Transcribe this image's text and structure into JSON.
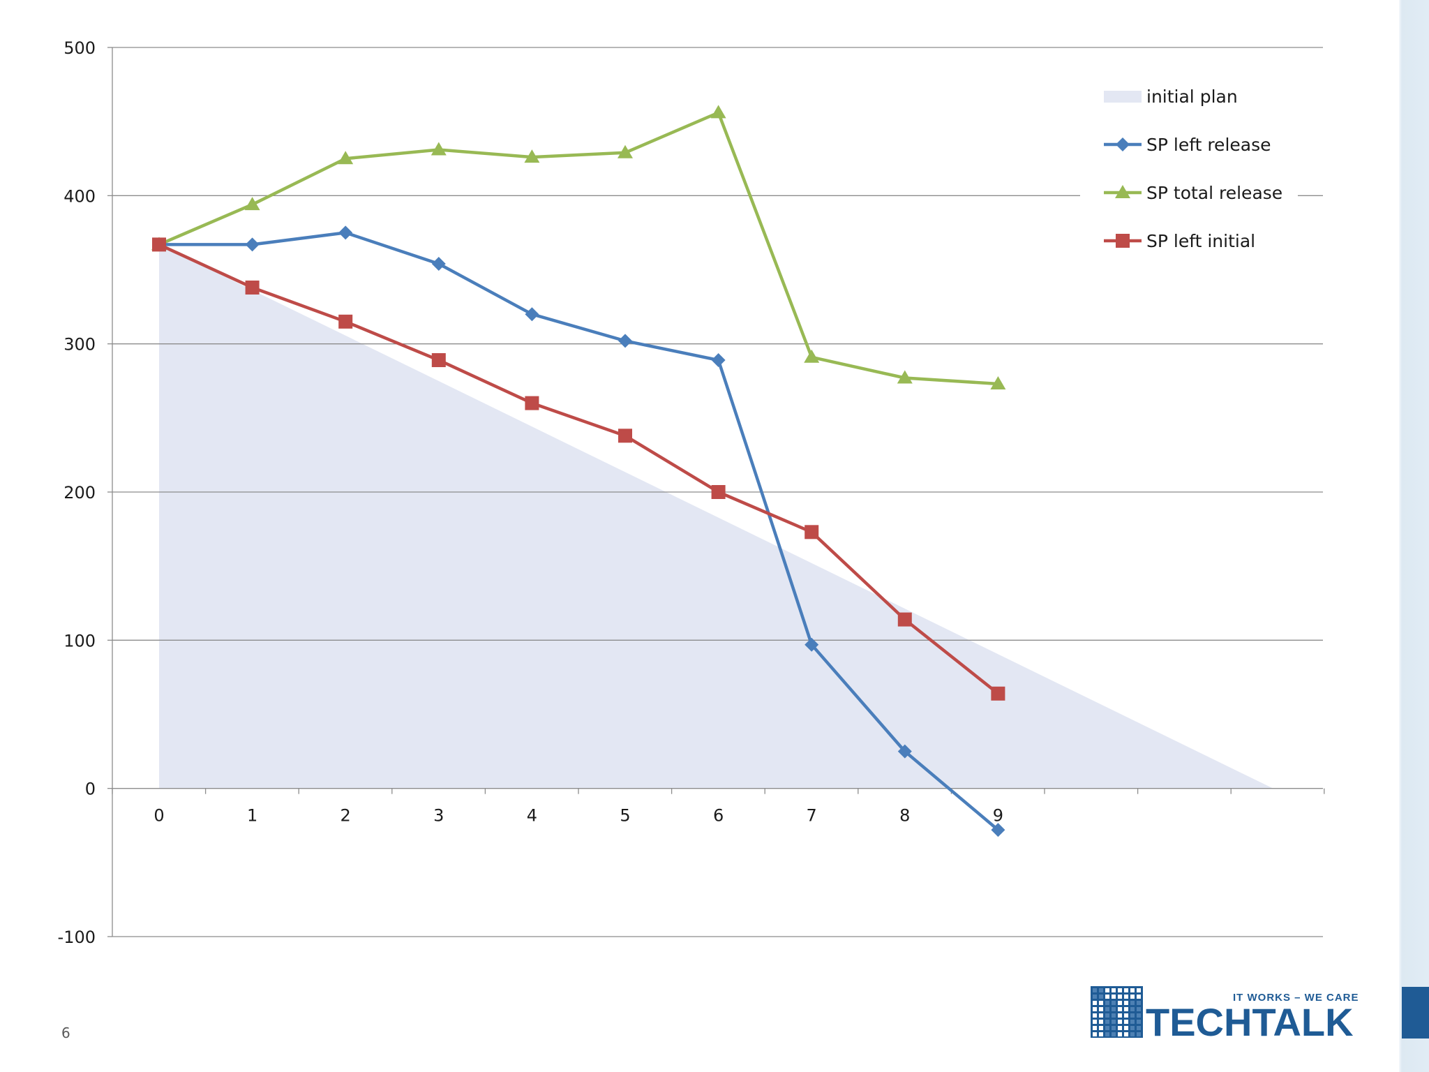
{
  "slide": {
    "page_number": "6"
  },
  "brand": {
    "tagline": "IT WORKS – WE CARE",
    "name": "TECHTALK",
    "color": "#1f5b95"
  },
  "chart_data": {
    "type": "line",
    "title": "",
    "xlabel": "",
    "ylabel": "",
    "categories": [
      "0",
      "1",
      "2",
      "3",
      "4",
      "5",
      "6",
      "7",
      "8",
      "9"
    ],
    "ylim": [
      -100,
      500
    ],
    "y_ticks": [
      500,
      400,
      300,
      200,
      100,
      0,
      -100
    ],
    "grid": true,
    "legend_position": "top-right",
    "series": [
      {
        "name": "initial plan",
        "kind": "area",
        "color": "#e3e7f3",
        "x": [
          0,
          11.95
        ],
        "values": [
          367,
          0
        ]
      },
      {
        "name": "SP left release",
        "kind": "line",
        "marker": "diamond",
        "color": "#4a7ebb",
        "values": [
          367,
          367,
          375,
          354,
          320,
          302,
          289,
          97,
          25,
          -28
        ]
      },
      {
        "name": "SP total release",
        "kind": "line",
        "marker": "triangle",
        "color": "#98b954",
        "values": [
          367,
          394,
          425,
          431,
          426,
          429,
          456,
          291,
          277,
          273
        ]
      },
      {
        "name": "SP left initial",
        "kind": "line",
        "marker": "square",
        "color": "#be4b48",
        "values": [
          367,
          338,
          315,
          289,
          260,
          238,
          200,
          173,
          114,
          64
        ]
      }
    ]
  }
}
